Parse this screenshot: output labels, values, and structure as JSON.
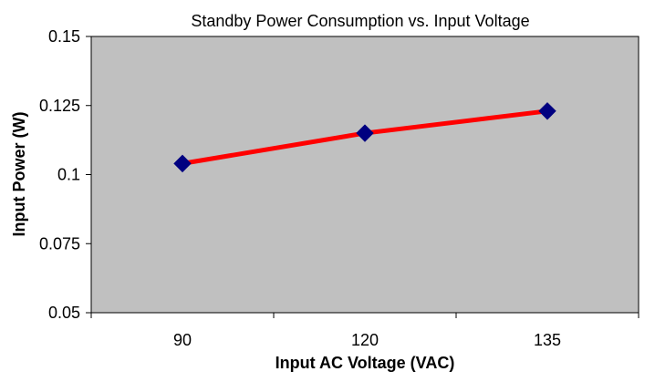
{
  "chart_data": {
    "type": "line",
    "title": "Standby Power Consumption vs. Input Voltage",
    "xlabel": "Input AC Voltage (VAC)",
    "ylabel": "Input Power (W)",
    "categories": [
      "90",
      "120",
      "135"
    ],
    "series": [
      {
        "name": "Input Power",
        "values": [
          0.104,
          0.115,
          0.123
        ]
      }
    ],
    "ylim": [
      0.05,
      0.15
    ],
    "yticks": [
      "0.05",
      "0.075",
      "0.1",
      "0.125",
      "0.15"
    ],
    "grid": false,
    "legend": "none",
    "colors": {
      "plot_background": "#c0c0c0",
      "line": "#ff0000",
      "marker": "#000080",
      "axis": "#000000"
    }
  }
}
